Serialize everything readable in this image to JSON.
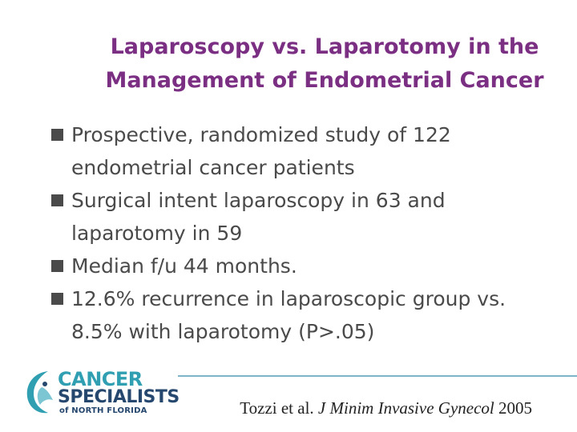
{
  "slide": {
    "title_line1": "Laparoscopy vs. Laparotomy in the",
    "title_line2": "Management of Endometrial Cancer",
    "bullets": [
      {
        "line1": "Prospective, randomized study of 122",
        "line2": "endometrial cancer patients"
      },
      {
        "line1": "Surgical intent laparoscopy in 63 and",
        "line2": "laparotomy in 59"
      },
      {
        "line1": "Median f/u 44 months.",
        "line2": ""
      },
      {
        "line1": "12.6% recurrence in laparoscopic group vs.",
        "line2": "8.5% with laparotomy (P>.05)"
      }
    ]
  },
  "citation": {
    "authors": "Tozzi et al.",
    "journal": "J Minim Invasive Gynecol",
    "year": "2005"
  },
  "logo": {
    "line1": "CANCER",
    "line2": "SPECIALISTS",
    "line3": "of NORTH FLORIDA"
  },
  "colors": {
    "title": "#7b2f82",
    "body_text": "#4a4a4a",
    "logo_teal": "#2f9fb1",
    "logo_navy": "#26476e",
    "rule": "#7fb3c7"
  }
}
